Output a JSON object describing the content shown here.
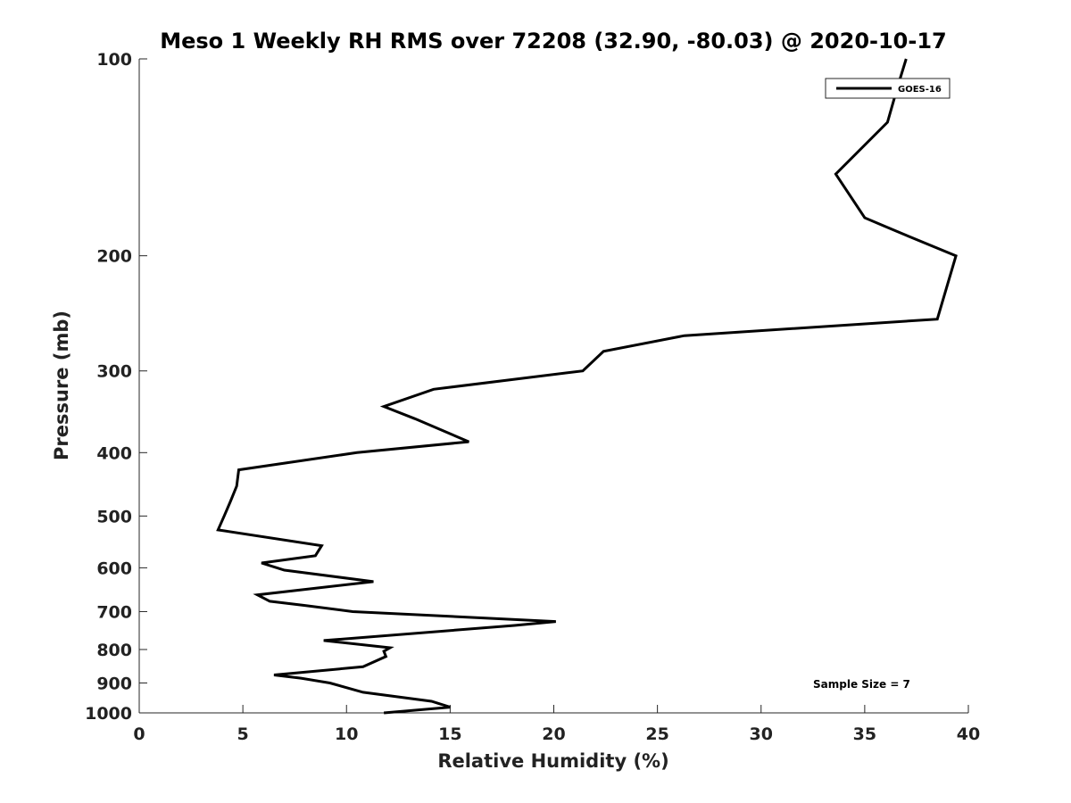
{
  "chart_data": {
    "type": "line",
    "title": "Meso 1 Weekly RH RMS over 72208 (32.90, -80.03) @ 2020-10-17",
    "xlabel": "Relative Humidity (%)",
    "ylabel": "Pressure (mb)",
    "xlim": [
      0,
      40
    ],
    "ylim": [
      100,
      1000
    ],
    "yscale": "log",
    "y_reversed": true,
    "grid": false,
    "legend_position": "top-right",
    "annotation": "Sample Size = 7",
    "x_ticks": [
      "0",
      "5",
      "10",
      "15",
      "20",
      "25",
      "30",
      "35",
      "40"
    ],
    "y_ticks": [
      "100",
      "200",
      "300",
      "400",
      "500",
      "600",
      "700",
      "800",
      "900",
      "1000"
    ],
    "series": [
      {
        "name": "GOES-16",
        "color": "#000000",
        "points": [
          [
            37.0,
            100
          ],
          [
            36.6,
            110
          ],
          [
            36.1,
            125
          ],
          [
            33.6,
            150
          ],
          [
            35.0,
            175
          ],
          [
            36.8,
            185
          ],
          [
            39.4,
            200
          ],
          [
            38.5,
            250
          ],
          [
            26.3,
            265
          ],
          [
            22.4,
            280
          ],
          [
            21.4,
            300
          ],
          [
            14.2,
            320
          ],
          [
            11.8,
            340
          ],
          [
            13.3,
            355
          ],
          [
            15.9,
            385
          ],
          [
            10.5,
            400
          ],
          [
            4.8,
            425
          ],
          [
            4.7,
            450
          ],
          [
            4.4,
            475
          ],
          [
            4.1,
            500
          ],
          [
            3.8,
            525
          ],
          [
            8.8,
            555
          ],
          [
            8.5,
            575
          ],
          [
            5.9,
            590
          ],
          [
            7.0,
            605
          ],
          [
            11.3,
            630
          ],
          [
            5.7,
            660
          ],
          [
            6.3,
            675
          ],
          [
            8.0,
            685
          ],
          [
            10.3,
            700
          ],
          [
            20.1,
            725
          ],
          [
            18.1,
            735
          ],
          [
            8.9,
            775
          ],
          [
            12.1,
            795
          ],
          [
            11.8,
            805
          ],
          [
            11.9,
            820
          ],
          [
            10.8,
            850
          ],
          [
            6.5,
            875
          ],
          [
            7.8,
            885
          ],
          [
            9.2,
            900
          ],
          [
            10.8,
            930
          ],
          [
            14.1,
            960
          ],
          [
            15.0,
            980
          ],
          [
            11.8,
            1000
          ]
        ]
      }
    ]
  }
}
